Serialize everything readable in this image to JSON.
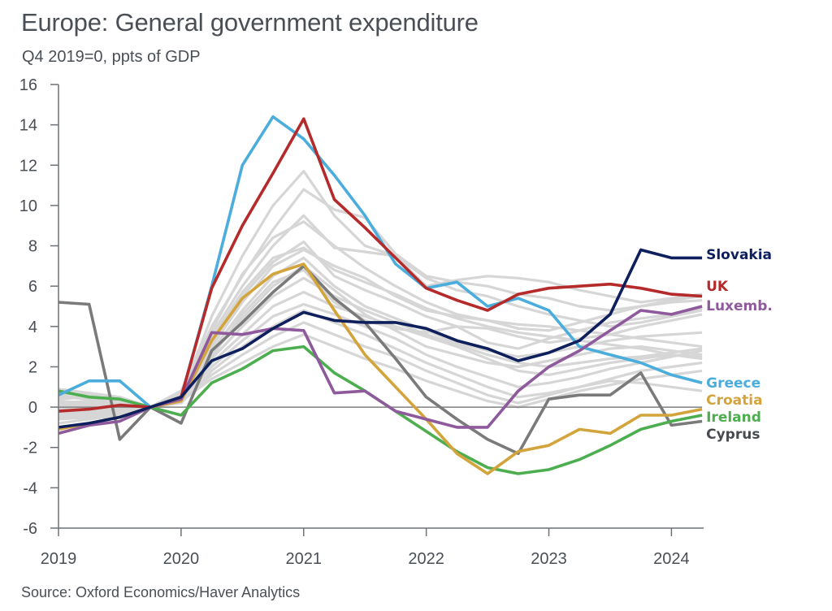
{
  "header": {
    "title": "Europe: General government expenditure",
    "subtitle": "Q4 2019=0, ppts of GDP"
  },
  "footer": {
    "source": "Source: Oxford Economics/Haver Analytics"
  },
  "chart_data": {
    "type": "line",
    "title": "Europe: General government expenditure",
    "subtitle": "Q4 2019=0, ppts of GDP",
    "xlabel": "",
    "ylabel": "",
    "ylim": [
      -6,
      16
    ],
    "yticks": [
      16,
      14,
      12,
      10,
      8,
      6,
      4,
      2,
      0,
      -2,
      -4,
      -6
    ],
    "ytick_labels": [
      "16",
      "14",
      "12",
      "10",
      "8",
      "6",
      "4",
      "2",
      "0",
      "-2",
      "-4",
      "-6"
    ],
    "xtick_labels": [
      "2019",
      "2020",
      "2021",
      "2022",
      "2023",
      "2024"
    ],
    "x": [
      "2019Q1",
      "2019Q2",
      "2019Q3",
      "2019Q4",
      "2020Q1",
      "2020Q2",
      "2020Q3",
      "2020Q4",
      "2021Q1",
      "2021Q2",
      "2021Q3",
      "2021Q4",
      "2022Q1",
      "2022Q2",
      "2022Q3",
      "2022Q4",
      "2023Q1",
      "2023Q2",
      "2023Q3",
      "2023Q4",
      "2024Q1",
      "2024Q2"
    ],
    "grid": false,
    "legend": "direct labels at right end of lines",
    "highlighted_series": [
      {
        "name": "Slovakia",
        "color": "#0d1f5c",
        "values": [
          -1.0,
          -0.8,
          -0.5,
          0,
          0.5,
          2.3,
          2.9,
          3.9,
          4.7,
          4.3,
          4.2,
          4.2,
          3.9,
          3.3,
          2.9,
          2.3,
          2.7,
          3.3,
          4.6,
          7.8,
          7.4,
          7.4
        ]
      },
      {
        "name": "UK",
        "color": "#b52a2a",
        "values": [
          -0.2,
          -0.1,
          0.1,
          0,
          0.5,
          5.9,
          9.0,
          11.6,
          14.3,
          10.3,
          8.9,
          7.4,
          5.9,
          5.3,
          4.8,
          5.6,
          5.9,
          6.0,
          6.1,
          5.9,
          5.6,
          5.5
        ]
      },
      {
        "name": "Luxemb.",
        "color": "#8e5a9c",
        "values": [
          -1.3,
          -0.9,
          -0.7,
          0,
          0.4,
          3.7,
          3.6,
          3.9,
          3.8,
          0.7,
          0.8,
          -0.2,
          -0.6,
          -1.0,
          -1.0,
          0.8,
          2.0,
          2.8,
          3.8,
          4.8,
          4.6,
          5.0
        ]
      },
      {
        "name": "Greece",
        "color": "#4aaddc",
        "values": [
          0.6,
          1.3,
          1.3,
          0,
          0.5,
          6.0,
          12.0,
          14.4,
          13.3,
          11.5,
          9.5,
          7.1,
          5.9,
          6.2,
          5.0,
          5.4,
          4.8,
          3.0,
          2.6,
          2.2,
          1.6,
          1.2
        ]
      },
      {
        "name": "Croatia",
        "color": "#d4a43c",
        "values": [
          -1.1,
          -0.8,
          -0.5,
          0,
          0.3,
          3.3,
          5.4,
          6.6,
          7.1,
          4.8,
          2.6,
          1.0,
          -0.6,
          -2.3,
          -3.3,
          -2.2,
          -1.9,
          -1.1,
          -1.3,
          -0.4,
          -0.4,
          -0.1
        ]
      },
      {
        "name": "Ireland",
        "color": "#4cae4f",
        "values": [
          0.8,
          0.5,
          0.4,
          0,
          -0.4,
          1.2,
          1.9,
          2.8,
          3.0,
          1.7,
          0.8,
          -0.2,
          -1.2,
          -2.2,
          -3.0,
          -3.3,
          -3.1,
          -2.6,
          -1.9,
          -1.1,
          -0.7,
          -0.4
        ]
      },
      {
        "name": "Cyprus",
        "color": "#7a7a7a",
        "label_color": "#474b50",
        "values": [
          5.2,
          5.1,
          -1.6,
          0,
          -0.8,
          2.8,
          4.2,
          5.7,
          7.0,
          5.4,
          4.2,
          2.4,
          0.5,
          -0.6,
          -1.6,
          -2.3,
          0.4,
          0.6,
          0.6,
          1.7,
          -0.9,
          -0.7
        ]
      }
    ],
    "background_series_color": "#d6d6d6",
    "background_series": [
      {
        "values": [
          0.3,
          0.2,
          0.1,
          0,
          0.6,
          4.5,
          7.5,
          10.0,
          11.7,
          9.5,
          8.0,
          7.5,
          6.0,
          6.3,
          6.5,
          6.4,
          6.2,
          5.8,
          5.5,
          5.2,
          5.4,
          5.6
        ]
      },
      {
        "values": [
          0.5,
          0.4,
          0.3,
          0,
          0.8,
          4.0,
          6.5,
          8.8,
          10.8,
          9.8,
          9.4,
          7.6,
          6.5,
          6.2,
          6.0,
          5.6,
          5.4,
          5.0,
          4.8,
          5.0,
          5.2,
          5.3
        ]
      },
      {
        "values": [
          0.2,
          0.3,
          0.2,
          0,
          0.6,
          3.6,
          6.0,
          8.0,
          9.5,
          7.9,
          7.7,
          7.5,
          6.4,
          5.8,
          5.5,
          5.0,
          4.6,
          4.3,
          4.0,
          4.2,
          4.5,
          4.8
        ]
      },
      {
        "values": [
          -0.3,
          -0.2,
          -0.1,
          0,
          0.7,
          3.2,
          5.5,
          7.2,
          8.2,
          6.5,
          5.8,
          5.2,
          4.5,
          4.0,
          3.9,
          3.5,
          3.2,
          3.4,
          3.6,
          4.0,
          4.3,
          4.6
        ]
      },
      {
        "values": [
          0.9,
          0.7,
          0.5,
          0,
          0.5,
          3.0,
          5.2,
          7.0,
          7.8,
          7.0,
          6.4,
          5.5,
          4.8,
          4.5,
          4.3,
          4.1,
          4.0,
          3.8,
          3.6,
          3.4,
          3.2,
          3.0
        ]
      },
      {
        "values": [
          -0.6,
          -0.5,
          -0.3,
          0,
          0.4,
          2.8,
          4.8,
          6.5,
          7.4,
          6.0,
          5.0,
          4.4,
          3.8,
          3.2,
          2.8,
          2.5,
          2.7,
          3.0,
          3.3,
          3.5,
          3.6,
          3.7
        ]
      },
      {
        "values": [
          0.4,
          0.5,
          0.4,
          0,
          0.6,
          2.6,
          4.4,
          6.0,
          7.0,
          5.8,
          4.6,
          3.8,
          3.0,
          2.6,
          2.2,
          2.0,
          2.3,
          2.6,
          2.9,
          3.0,
          2.8,
          2.6
        ]
      },
      {
        "values": [
          -0.5,
          -0.4,
          -0.2,
          0,
          0.3,
          2.4,
          4.0,
          5.5,
          6.4,
          5.5,
          4.8,
          4.2,
          3.6,
          3.1,
          2.6,
          2.2,
          2.0,
          2.2,
          2.4,
          2.5,
          2.7,
          2.9
        ]
      },
      {
        "values": [
          0.6,
          0.4,
          0.2,
          0,
          0.5,
          2.2,
          3.6,
          5.0,
          5.7,
          5.0,
          4.5,
          4.0,
          3.5,
          3.0,
          2.4,
          1.8,
          1.6,
          1.9,
          2.2,
          2.4,
          2.6,
          2.5
        ]
      },
      {
        "values": [
          -0.8,
          -0.6,
          -0.4,
          0,
          0.4,
          2.0,
          3.3,
          4.5,
          5.1,
          4.6,
          4.0,
          3.4,
          2.6,
          2.0,
          1.5,
          1.0,
          1.2,
          1.5,
          1.9,
          2.2,
          2.5,
          2.8
        ]
      },
      {
        "values": [
          0.1,
          0.0,
          0.0,
          0,
          0.2,
          1.8,
          3.0,
          4.0,
          4.8,
          4.2,
          3.6,
          2.9,
          2.2,
          1.6,
          1.0,
          0.5,
          0.7,
          1.0,
          1.4,
          1.8,
          2.0,
          2.2
        ]
      },
      {
        "values": [
          -0.4,
          -0.3,
          -0.2,
          0,
          0.3,
          1.6,
          2.6,
          3.5,
          4.2,
          3.6,
          3.0,
          2.5,
          1.8,
          1.2,
          0.6,
          0.2,
          0.6,
          1.0,
          1.3,
          1.2,
          1.0,
          0.8
        ]
      },
      {
        "values": [
          0.7,
          0.6,
          0.3,
          0,
          0.5,
          2.5,
          4.6,
          6.2,
          6.8,
          5.2,
          4.3,
          3.9,
          3.7,
          4.0,
          3.2,
          2.9,
          3.4,
          3.8,
          4.2,
          4.4,
          4.6,
          4.9
        ]
      },
      {
        "values": [
          -0.2,
          -0.1,
          0.0,
          0,
          0.4,
          3.4,
          5.7,
          7.4,
          7.9,
          6.8,
          6.2,
          5.6,
          4.9,
          4.4,
          4.0,
          3.7,
          3.5,
          3.3,
          3.1,
          2.9,
          2.6,
          2.4
        ]
      },
      {
        "values": [
          0.2,
          0.1,
          0.1,
          0,
          0.3,
          1.4,
          2.2,
          3.0,
          3.6,
          3.0,
          2.4,
          1.9,
          1.3,
          0.8,
          0.3,
          0.0,
          0.4,
          0.8,
          1.1,
          1.4,
          1.6,
          1.8
        ]
      },
      {
        "values": [
          -0.1,
          0.0,
          0.1,
          0,
          0.5,
          3.8,
          6.6,
          8.4,
          9.2,
          8.0,
          6.9,
          6.0,
          5.2,
          4.6,
          4.3,
          3.9,
          3.8,
          4.2,
          4.6,
          5.0,
          5.3,
          5.5
        ]
      }
    ]
  }
}
